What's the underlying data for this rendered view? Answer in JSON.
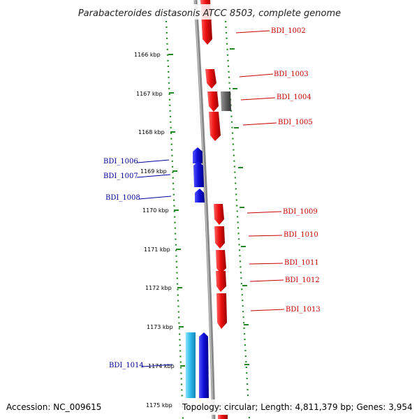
{
  "title": "Parabacteroides distasonis ATCC 8503, complete genome",
  "footer": {
    "accession": "Accession: NC_009615",
    "topology": "Topology: circular; Length: 4,811,379 bp; Genes: 3,954"
  },
  "colors": {
    "forward_gene": "#ee1111",
    "reverse_gene": "#1111dd",
    "rna_gene": "#33bbee",
    "other_gene": "#666666",
    "backbone": "#888888",
    "tick_dots": "#228822",
    "label_fwd": "#cc0000",
    "label_rev": "#000099"
  },
  "axis": {
    "ticks": [
      {
        "label": "1166 kbp"
      },
      {
        "label": "1167 kbp"
      },
      {
        "label": "1168 kbp"
      },
      {
        "label": "1169 kbp"
      },
      {
        "label": "1170 kbp"
      },
      {
        "label": "1171 kbp"
      },
      {
        "label": "1172 kbp"
      },
      {
        "label": "1173 kbp"
      },
      {
        "label": "1174 kbp"
      },
      {
        "label": "1175 kbp"
      }
    ]
  },
  "genes": [
    {
      "id": "BDI_1002",
      "strand": "forward",
      "type": "cds"
    },
    {
      "id": "BDI_1003",
      "strand": "forward",
      "type": "cds"
    },
    {
      "id": "BDI_1004",
      "strand": "forward",
      "type": "other"
    },
    {
      "id": "BDI_1005",
      "strand": "forward",
      "type": "cds"
    },
    {
      "id": "BDI_1006",
      "strand": "reverse",
      "type": "cds"
    },
    {
      "id": "BDI_1007",
      "strand": "reverse",
      "type": "cds"
    },
    {
      "id": "BDI_1008",
      "strand": "reverse",
      "type": "cds"
    },
    {
      "id": "BDI_1009",
      "strand": "forward",
      "type": "cds"
    },
    {
      "id": "BDI_1010",
      "strand": "forward",
      "type": "cds"
    },
    {
      "id": "BDI_1011",
      "strand": "forward",
      "type": "cds"
    },
    {
      "id": "BDI_1012",
      "strand": "forward",
      "type": "cds"
    },
    {
      "id": "BDI_1013",
      "strand": "forward",
      "type": "cds"
    },
    {
      "id": "BDI_1014",
      "strand": "reverse",
      "type": "cds"
    }
  ]
}
